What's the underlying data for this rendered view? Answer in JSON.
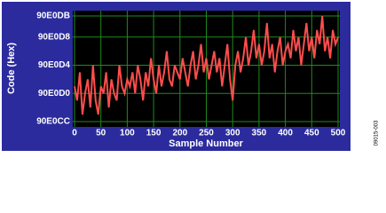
{
  "chart_data": {
    "type": "line",
    "xlabel": "Sample Number",
    "ylabel": "Code (Hex)",
    "side_note": "09015-003",
    "x": [
      0,
      5,
      10,
      15,
      20,
      25,
      30,
      35,
      40,
      45,
      50,
      55,
      60,
      65,
      70,
      75,
      80,
      85,
      90,
      95,
      100,
      105,
      110,
      115,
      120,
      125,
      130,
      135,
      140,
      145,
      150,
      155,
      160,
      165,
      170,
      175,
      180,
      185,
      190,
      195,
      200,
      205,
      210,
      215,
      220,
      225,
      230,
      235,
      240,
      245,
      250,
      255,
      260,
      265,
      270,
      275,
      280,
      285,
      290,
      295,
      300,
      305,
      310,
      315,
      320,
      325,
      330,
      335,
      340,
      345,
      350,
      355,
      360,
      365,
      370,
      375,
      380,
      385,
      390,
      395,
      400,
      405,
      410,
      415,
      420,
      425,
      430,
      435,
      440,
      445,
      450,
      455,
      460,
      465,
      470,
      475,
      480,
      485,
      490,
      495,
      500
    ],
    "series": [
      {
        "color": "#ff4d4d",
        "values": [
          9494737,
          9494735,
          9494739,
          9494733,
          9494736,
          9494738,
          9494734,
          9494740,
          9494735,
          9494733,
          9494737,
          9494736,
          9494739,
          9494734,
          9494738,
          9494736,
          9494735,
          9494740,
          9494737,
          9494736,
          9494738,
          9494737,
          9494739,
          9494736,
          9494740,
          9494738,
          9494735,
          9494739,
          9494737,
          9494741,
          9494738,
          9494736,
          9494740,
          9494737,
          9494739,
          9494742,
          9494738,
          9494737,
          9494740,
          9494739,
          9494738,
          9494741,
          9494739,
          9494737,
          9494740,
          9494742,
          9494738,
          9494740,
          9494743,
          9494739,
          9494741,
          9494738,
          9494740,
          9494742,
          9494739,
          9494741,
          9494737,
          9494740,
          9494743,
          9494738,
          9494735,
          9494740,
          9494742,
          9494739,
          9494741,
          9494744,
          9494740,
          9494742,
          9494745,
          9494741,
          9494743,
          9494740,
          9494742,
          9494746,
          9494741,
          9494743,
          9494739,
          9494742,
          9494744,
          9494740,
          9494742,
          9494743,
          9494741,
          9494745,
          9494742,
          9494744,
          9494740,
          9494743,
          9494746,
          9494742,
          9494744,
          9494741,
          9494745,
          9494743,
          9494747,
          9494742,
          9494744,
          9494741,
          9494745,
          9494743,
          9494744
        ]
      }
    ],
    "xlim": [
      0,
      500
    ],
    "xticks": [
      0,
      50,
      100,
      150,
      200,
      250,
      300,
      350,
      400,
      450,
      500
    ],
    "ylim": [
      9494732,
      9494747
    ],
    "yticks": [
      {
        "value": 9494732,
        "label": "90E0CC"
      },
      {
        "value": 9494736,
        "label": "90E0D0"
      },
      {
        "value": 9494740,
        "label": "90E0D4"
      },
      {
        "value": 9494744,
        "label": "90E0D8"
      },
      {
        "value": 9494747,
        "label": "90E0DB"
      }
    ],
    "grid": true,
    "grid_color": "#1f8a1f"
  }
}
